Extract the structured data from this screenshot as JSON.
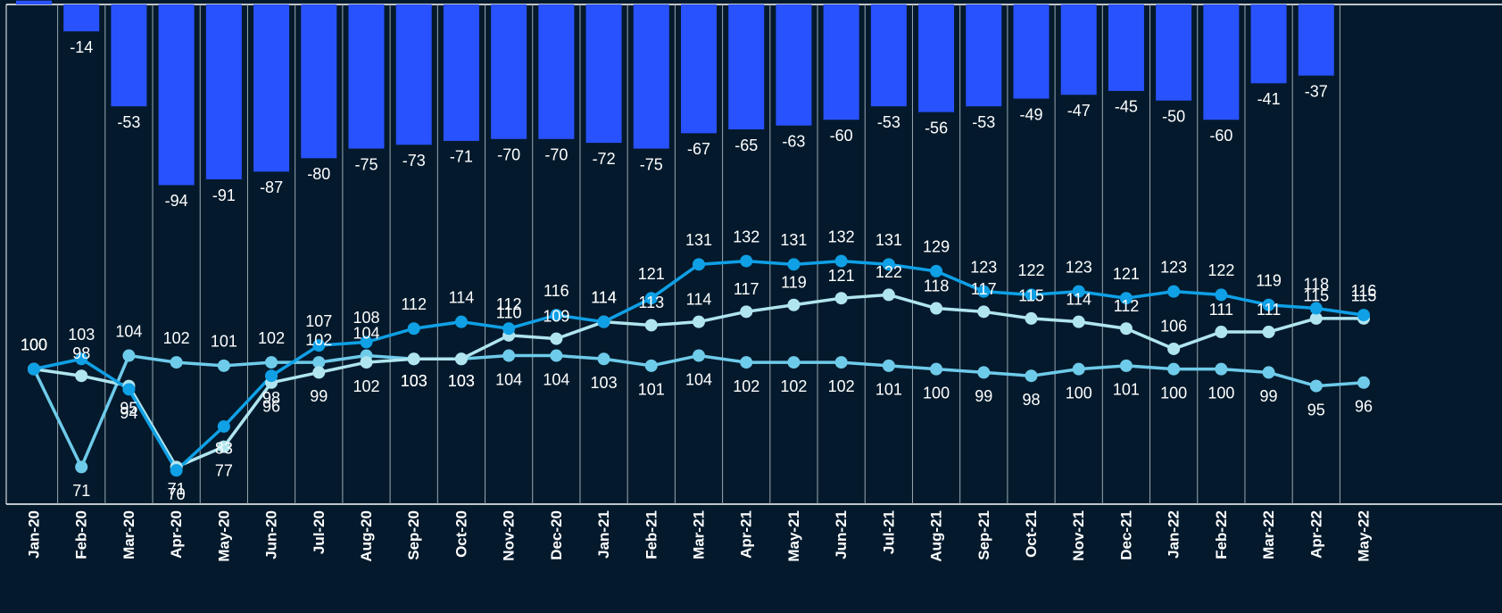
{
  "chart_data": {
    "type": "bar-line",
    "categories": [
      "Jan-20",
      "Feb-20",
      "Mar-20",
      "Apr-20",
      "May-20",
      "Jun-20",
      "Jul-20",
      "Aug-20",
      "Sep-20",
      "Oct-20",
      "Nov-20",
      "Dec-20",
      "Jan-21",
      "Feb-21",
      "Mar-21",
      "Apr-21",
      "May-21",
      "Jun-21",
      "Jul-21",
      "Aug-21",
      "Sep-21",
      "Oct-21",
      "Nov-21",
      "Dec-21",
      "Jan-22",
      "Feb-22",
      "Mar-22",
      "Apr-22",
      "May-22"
    ],
    "ylim": [
      -260,
      0
    ],
    "y2lim": [
      60,
      208
    ],
    "series": [
      {
        "type": "bar",
        "color": "#2952ff",
        "values": [
          2,
          -14,
          -53,
          -94,
          -91,
          -87,
          -80,
          -75,
          -73,
          -71,
          -70,
          -70,
          -72,
          -75,
          -67,
          -65,
          -63,
          -60,
          -53,
          -56,
          -53,
          -49,
          -47,
          -45,
          -50,
          -60,
          -41,
          -37,
          null
        ]
      },
      {
        "type": "line",
        "axis": "y2",
        "color": "#6fcbea",
        "values": [
          100,
          71,
          104,
          102,
          101,
          102,
          102,
          104,
          103,
          103,
          104,
          104,
          103,
          101,
          104,
          102,
          102,
          102,
          101,
          100,
          99,
          98,
          100,
          101,
          100,
          100,
          99,
          95,
          96
        ]
      },
      {
        "type": "line",
        "axis": "y2",
        "color": "#b0e5ef",
        "values": [
          100,
          98,
          95,
          71,
          77,
          96,
          99,
          102,
          103,
          103,
          110,
          109,
          114,
          113,
          114,
          117,
          119,
          121,
          122,
          118,
          117,
          115,
          114,
          112,
          106,
          111,
          111,
          115,
          115
        ]
      },
      {
        "type": "line",
        "axis": "y2",
        "color": "#0fa0e6",
        "values": [
          100,
          103,
          94,
          70,
          83,
          98,
          107,
          108,
          112,
          114,
          112,
          116,
          114,
          121,
          131,
          132,
          131,
          132,
          131,
          129,
          123,
          122,
          123,
          121,
          123,
          122,
          119,
          118,
          116
        ]
      }
    ]
  }
}
